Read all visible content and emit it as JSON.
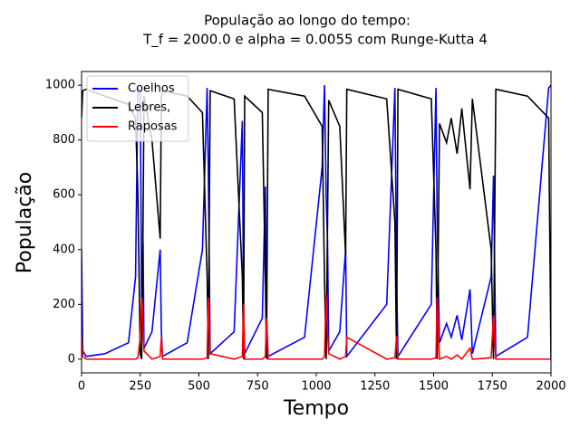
{
  "chart_data": {
    "type": "line",
    "title": "População ao longo do tempo:",
    "subtitle": "T_f = 2000.0 e alpha = 0.0055 com Runge-Kutta 4",
    "x_label": "Tempo",
    "y_label": "População",
    "x": [
      0,
      5,
      20,
      100,
      200,
      230,
      240,
      250,
      256,
      262,
      266,
      300,
      335,
      340,
      345,
      450,
      515,
      535,
      540,
      548,
      650,
      685,
      690,
      695,
      770,
      783,
      788,
      795,
      950,
      1025,
      1035,
      1042,
      1048,
      1053,
      1100,
      1125,
      1130,
      1300,
      1335,
      1342,
      1348,
      1490,
      1510,
      1515,
      1525,
      1555,
      1575,
      1600,
      1620,
      1655,
      1665,
      1745,
      1755,
      1765,
      1900,
      1990,
      2000
    ],
    "series": [
      {
        "name": "Coelhos",
        "color": "#0000ff",
        "values": [
          400,
          30,
          10,
          20,
          60,
          300,
          990,
          980,
          200,
          430,
          40,
          100,
          400,
          100,
          10,
          60,
          400,
          990,
          700,
          20,
          100,
          870,
          200,
          20,
          150,
          630,
          150,
          10,
          80,
          700,
          1000,
          600,
          430,
          30,
          100,
          400,
          10,
          200,
          990,
          300,
          10,
          200,
          990,
          500,
          60,
          130,
          80,
          160,
          70,
          255,
          20,
          300,
          670,
          10,
          80,
          990,
          1000
        ]
      },
      {
        "name": "Lebres,",
        "color": "#000000",
        "values": [
          880,
          980,
          985,
          960,
          930,
          880,
          600,
          20,
          0,
          500,
          960,
          800,
          440,
          960,
          980,
          960,
          900,
          300,
          0,
          980,
          950,
          300,
          0,
          960,
          900,
          300,
          0,
          985,
          960,
          850,
          300,
          0,
          500,
          945,
          850,
          380,
          985,
          950,
          500,
          0,
          985,
          950,
          400,
          0,
          860,
          790,
          880,
          750,
          915,
          620,
          950,
          400,
          0,
          985,
          960,
          880,
          0
        ]
      },
      {
        "name": "Raposas",
        "color": "#ff0000",
        "values": [
          100,
          10,
          0,
          0,
          0,
          0,
          5,
          80,
          225,
          120,
          30,
          0,
          10,
          80,
          0,
          0,
          0,
          5,
          225,
          20,
          0,
          10,
          200,
          0,
          0,
          10,
          150,
          0,
          0,
          0,
          10,
          235,
          100,
          20,
          0,
          10,
          80,
          0,
          5,
          85,
          0,
          0,
          5,
          225,
          0,
          10,
          0,
          15,
          0,
          40,
          0,
          5,
          160,
          0,
          0,
          0,
          0
        ]
      }
    ],
    "xlim": [
      0,
      2000
    ],
    "ylim": [
      -50,
      1050
    ],
    "xticks": [
      0,
      250,
      500,
      750,
      1000,
      1250,
      1500,
      1750,
      2000
    ],
    "yticks": [
      0,
      200,
      400,
      600,
      800,
      1000
    ],
    "legend": "upper left"
  }
}
